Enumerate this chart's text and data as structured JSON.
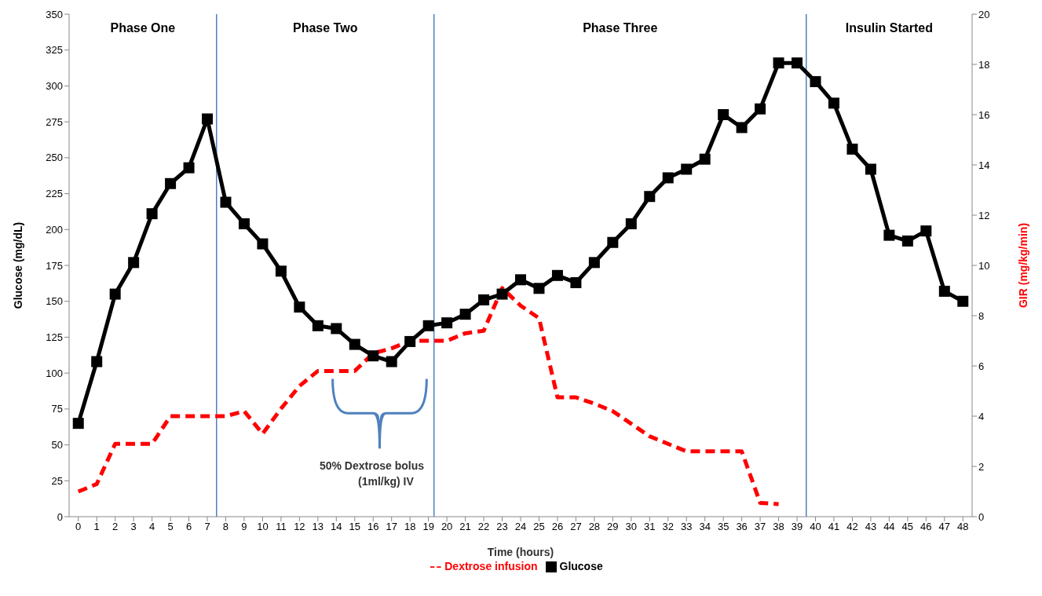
{
  "chart_data": {
    "type": "line",
    "xlabel": "Time (hours)",
    "ylabel": "Glucose  (mg/dL)",
    "y2label": "GIR  (mg/kg/min)",
    "x": [
      0,
      1,
      2,
      3,
      4,
      5,
      6,
      7,
      8,
      9,
      10,
      11,
      12,
      13,
      14,
      15,
      16,
      17,
      18,
      19,
      20,
      21,
      22,
      23,
      24,
      25,
      26,
      27,
      28,
      29,
      30,
      31,
      32,
      33,
      34,
      35,
      36,
      37,
      38,
      39,
      40,
      41,
      42,
      43,
      44,
      45,
      46,
      47,
      48
    ],
    "xlim": [
      -0.5,
      48.5
    ],
    "xticks": [
      0,
      1,
      2,
      3,
      4,
      5,
      6,
      7,
      8,
      9,
      10,
      11,
      12,
      13,
      14,
      15,
      16,
      17,
      18,
      19,
      20,
      21,
      22,
      23,
      24,
      25,
      26,
      27,
      28,
      29,
      30,
      31,
      32,
      33,
      34,
      35,
      36,
      37,
      38,
      39,
      40,
      41,
      42,
      43,
      44,
      45,
      46,
      47,
      48
    ],
    "ylim": [
      0,
      350
    ],
    "yticks": [
      0,
      25,
      50,
      75,
      100,
      125,
      150,
      175,
      200,
      225,
      250,
      275,
      300,
      325,
      350
    ],
    "y2lim": [
      0,
      20
    ],
    "y2ticks": [
      0,
      2,
      4,
      6,
      8,
      10,
      12,
      14,
      16,
      18,
      20
    ],
    "series": [
      {
        "name": "Glucose",
        "color": "#000000",
        "marker": "square",
        "line_style": "solid",
        "values": [
          65,
          108,
          155,
          177,
          211,
          232,
          243,
          277,
          219,
          204,
          190,
          171,
          146,
          133,
          131,
          120,
          112,
          108,
          122,
          133,
          135,
          141,
          151,
          155,
          165,
          159,
          168,
          163,
          177,
          191,
          204,
          223,
          236,
          242,
          249,
          280,
          271,
          284,
          316,
          316,
          303,
          288,
          256,
          242,
          196,
          192,
          199,
          157,
          150
        ]
      },
      {
        "name": "Dextrose infusion",
        "color": "#ff0000",
        "axis": "y2",
        "marker": "none",
        "line_style": "dashed",
        "values": [
          1.0,
          1.3,
          2.9,
          2.9,
          2.9,
          4.0,
          4.0,
          4.0,
          4.0,
          4.2,
          3.3,
          4.3,
          5.2,
          5.8,
          5.8,
          5.8,
          6.5,
          6.7,
          7.0,
          7.0,
          7.0,
          7.3,
          7.4,
          9.1,
          8.4,
          7.9,
          4.75,
          4.75,
          4.5,
          4.2,
          3.7,
          3.2,
          2.9,
          2.6,
          2.6,
          2.6,
          2.6,
          0.55,
          0.5,
          null,
          null,
          null,
          null,
          null,
          null,
          null,
          null,
          null,
          null
        ]
      }
    ],
    "ref_lines": [
      {
        "axis": "x",
        "value": 7.5,
        "color": "#4f81bd"
      },
      {
        "axis": "x",
        "value": 19.3,
        "color": "#4f81bd"
      },
      {
        "axis": "x",
        "value": 39.5,
        "color": "#4f81bd"
      }
    ],
    "annotations": [
      "Phase One",
      "Phase Two",
      "Phase Three",
      "Insulin Started",
      "50% Dextrose bolus\n(1ml/kg) IV"
    ],
    "grid": false,
    "legend": "bottom"
  }
}
